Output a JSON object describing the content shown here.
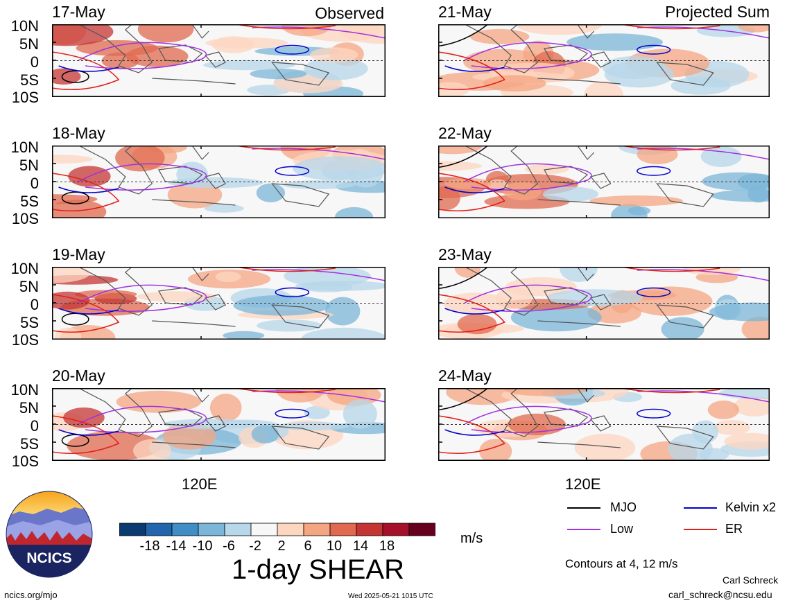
{
  "panels": [
    {
      "date": "17-May",
      "tag": "Observed"
    },
    {
      "date": "18-May",
      "tag": ""
    },
    {
      "date": "19-May",
      "tag": ""
    },
    {
      "date": "20-May",
      "tag": ""
    },
    {
      "date": "21-May",
      "tag": "Projected Sum"
    },
    {
      "date": "22-May",
      "tag": ""
    },
    {
      "date": "23-May",
      "tag": ""
    },
    {
      "date": "24-May",
      "tag": ""
    }
  ],
  "lat_labels": [
    "10N",
    "5N",
    "0",
    "5S",
    "10S"
  ],
  "lon_label": "120E",
  "colorbar": {
    "colors": [
      "#0a3a70",
      "#2166ac",
      "#3f8ec6",
      "#7bb5d8",
      "#b7d7ea",
      "#f7f7f7",
      "#fdd6c0",
      "#f4a582",
      "#e0694f",
      "#c43534",
      "#a5112a",
      "#67001f"
    ],
    "ticks": [
      "-18",
      "-14",
      "-10",
      "-6",
      "-2",
      "2",
      "6",
      "10",
      "14",
      "18"
    ],
    "units": "m/s"
  },
  "title": "1-day SHEAR",
  "legend": [
    {
      "label": "MJO",
      "color": "#000000"
    },
    {
      "label": "Kelvin x2",
      "color": "#0000cc"
    },
    {
      "label": "Low",
      "color": "#a030e0"
    },
    {
      "label": "ER",
      "color": "#e0201a"
    }
  ],
  "contours_note": "Contours at 4, 12 m/s",
  "author": "Carl Schreck",
  "email": "carl_schreck@ncsu.edu",
  "website": "ncics.org/mjo",
  "timestamp": "Wed 2025-05-21 1015 UTC",
  "logo_text": "NCICS"
}
